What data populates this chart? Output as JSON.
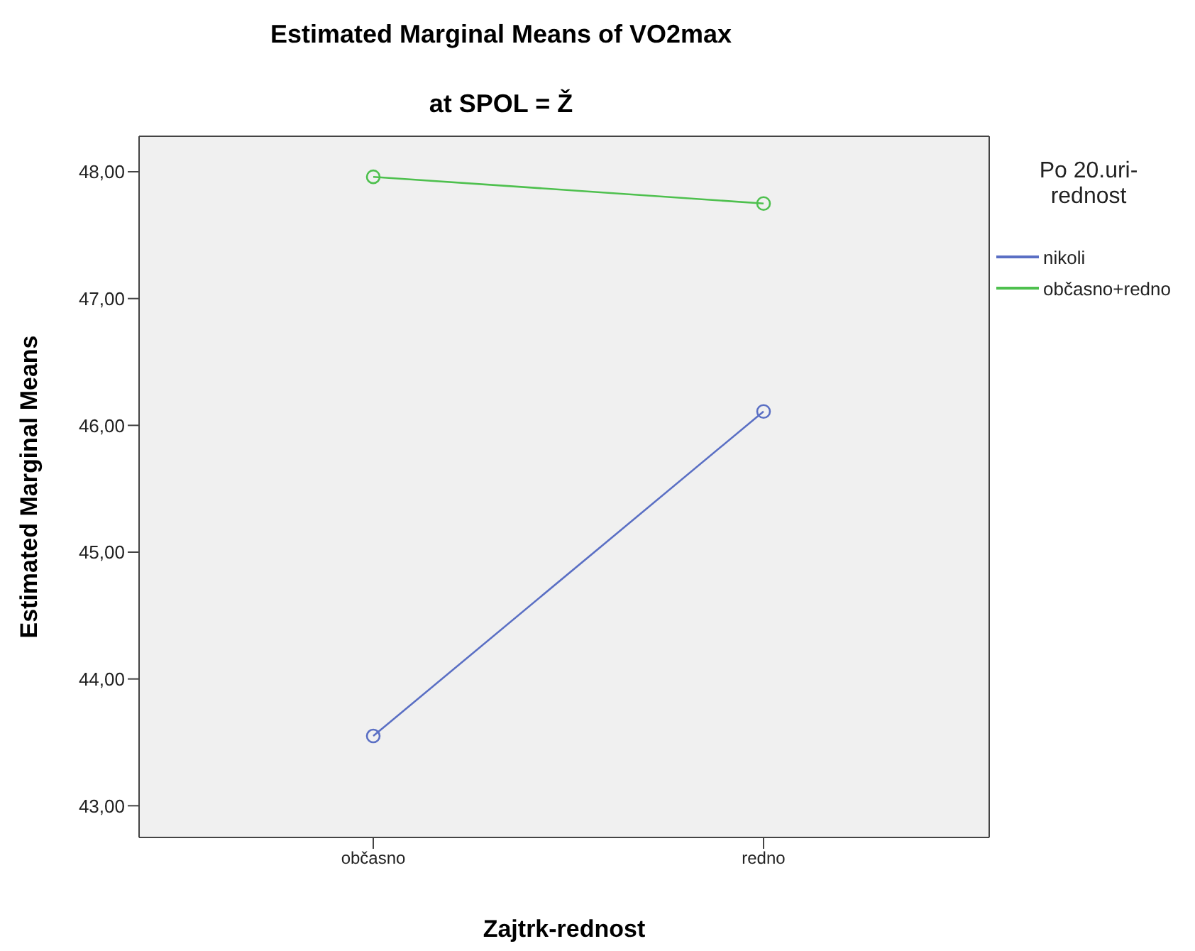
{
  "chart_data": {
    "type": "line",
    "title": "Estimated Marginal Means of VO2max",
    "subtitle": "at SPOL = Ž",
    "xlabel": "Zajtrk-rednost",
    "ylabel": "Estimated Marginal Means",
    "legend_title": "Po 20.uri-rednost",
    "categories": [
      "občasno",
      "redno"
    ],
    "series": [
      {
        "name": "nikoli",
        "color": "#5a6fc4",
        "values": [
          43.55,
          46.11
        ]
      },
      {
        "name": "občasno+redno",
        "color": "#4ec04e",
        "values": [
          47.96,
          47.75
        ]
      }
    ],
    "ylim": [
      42.75,
      48.28
    ],
    "yticks": [
      {
        "value": 43,
        "label": "43,00"
      },
      {
        "value": 44,
        "label": "44,00"
      },
      {
        "value": 45,
        "label": "45,00"
      },
      {
        "value": 46,
        "label": "46,00"
      },
      {
        "value": 47,
        "label": "47,00"
      },
      {
        "value": 48,
        "label": "48,00"
      }
    ],
    "legend": "right",
    "marker": "circle",
    "line_style": "solid"
  }
}
